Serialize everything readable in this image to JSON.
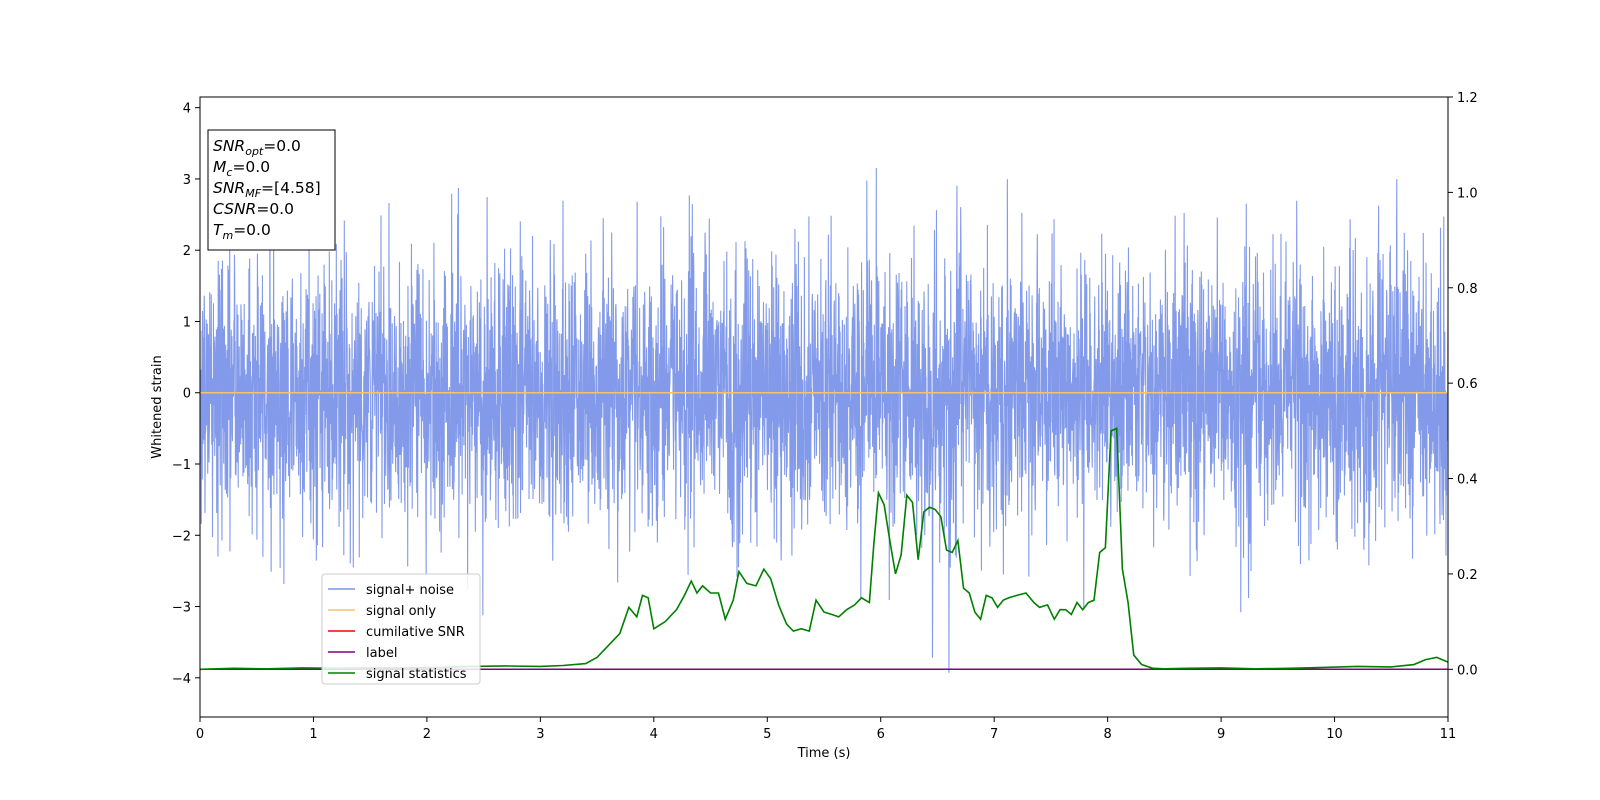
{
  "chart_data": {
    "type": "line",
    "xlabel": "Time (s)",
    "ylabel": "Whitened strain",
    "xlim": [
      0,
      11
    ],
    "ylim_left": [
      -4.55,
      4.15
    ],
    "ylim_right": [
      -0.1,
      1.2
    ],
    "x_ticks": [
      "0",
      "1",
      "2",
      "3",
      "4",
      "5",
      "6",
      "7",
      "8",
      "9",
      "10",
      "11"
    ],
    "y_ticks_left": [
      "−4",
      "−3",
      "−2",
      "−1",
      "0",
      "1",
      "2",
      "3",
      "4"
    ],
    "y_ticks_right": [
      "0.0",
      "0.2",
      "0.4",
      "0.6",
      "0.8",
      "1.0",
      "1.2"
    ],
    "grid": false,
    "legend_position": "lower-left",
    "series": [
      {
        "name": "signal+ noise",
        "color": "#7b95e8",
        "axis": "left",
        "style": "noise",
        "note_amplitude_sd": 0.95
      },
      {
        "name": "signal only",
        "color": "#f5c36b",
        "axis": "left",
        "x": [
          0,
          11
        ],
        "values": [
          0,
          0
        ]
      },
      {
        "name": "cumilative SNR",
        "color": "#ff0000",
        "axis": "right",
        "x": [],
        "values": []
      },
      {
        "name": "label",
        "color": "#800080",
        "axis": "right",
        "x": [
          0,
          11
        ],
        "values": [
          0,
          0
        ]
      },
      {
        "name": "signal statistics",
        "color": "#008000",
        "axis": "right",
        "x": [
          0,
          0.3,
          0.6,
          0.9,
          1.2,
          1.5,
          1.8,
          2.1,
          2.4,
          2.7,
          3.0,
          3.2,
          3.4,
          3.5,
          3.6,
          3.7,
          3.78,
          3.85,
          3.9,
          3.95,
          4.0,
          4.1,
          4.2,
          4.27,
          4.33,
          4.38,
          4.43,
          4.5,
          4.57,
          4.63,
          4.7,
          4.75,
          4.82,
          4.9,
          4.97,
          5.03,
          5.1,
          5.17,
          5.23,
          5.3,
          5.37,
          5.43,
          5.5,
          5.57,
          5.63,
          5.7,
          5.77,
          5.83,
          5.9,
          5.94,
          5.98,
          6.03,
          6.08,
          6.13,
          6.18,
          6.23,
          6.28,
          6.33,
          6.38,
          6.43,
          6.48,
          6.53,
          6.58,
          6.63,
          6.68,
          6.73,
          6.78,
          6.83,
          6.88,
          6.93,
          6.98,
          7.03,
          7.08,
          7.13,
          7.2,
          7.28,
          7.35,
          7.4,
          7.47,
          7.53,
          7.58,
          7.63,
          7.68,
          7.73,
          7.78,
          7.83,
          7.88,
          7.93,
          7.98,
          8.03,
          8.08,
          8.13,
          8.18,
          8.23,
          8.3,
          8.4,
          8.5,
          8.7,
          9.0,
          9.3,
          9.6,
          9.9,
          10.2,
          10.5,
          10.7,
          10.8,
          10.9,
          11.0
        ],
        "values": [
          0.0,
          0.002,
          0.001,
          0.003,
          0.002,
          0.003,
          0.003,
          0.004,
          0.006,
          0.007,
          0.006,
          0.008,
          0.012,
          0.025,
          0.05,
          0.075,
          0.13,
          0.11,
          0.155,
          0.15,
          0.085,
          0.1,
          0.125,
          0.155,
          0.185,
          0.16,
          0.175,
          0.16,
          0.16,
          0.105,
          0.145,
          0.205,
          0.18,
          0.175,
          0.21,
          0.19,
          0.135,
          0.095,
          0.08,
          0.085,
          0.08,
          0.145,
          0.12,
          0.115,
          0.11,
          0.125,
          0.135,
          0.15,
          0.14,
          0.265,
          0.37,
          0.345,
          0.27,
          0.2,
          0.24,
          0.365,
          0.35,
          0.23,
          0.33,
          0.34,
          0.335,
          0.32,
          0.25,
          0.245,
          0.27,
          0.17,
          0.16,
          0.12,
          0.105,
          0.155,
          0.15,
          0.13,
          0.145,
          0.15,
          0.155,
          0.16,
          0.14,
          0.13,
          0.135,
          0.105,
          0.125,
          0.125,
          0.115,
          0.14,
          0.125,
          0.14,
          0.145,
          0.245,
          0.255,
          0.5,
          0.505,
          0.21,
          0.14,
          0.03,
          0.01,
          0.002,
          0.001,
          0.002,
          0.003,
          0.001,
          0.002,
          0.004,
          0.006,
          0.005,
          0.01,
          0.02,
          0.025,
          0.015
        ]
      }
    ]
  },
  "info_box": [
    {
      "main": "SNR",
      "sub": "opt",
      "value": "=0.0"
    },
    {
      "main": "M",
      "sub": "c",
      "value": "=0.0"
    },
    {
      "main": "SNR",
      "sub": "MF",
      "value": "=[4.58]"
    },
    {
      "main": "CSNR",
      "sub": "",
      "value": "=0.0"
    },
    {
      "main": "T",
      "sub": "m",
      "value": "=0.0"
    }
  ]
}
